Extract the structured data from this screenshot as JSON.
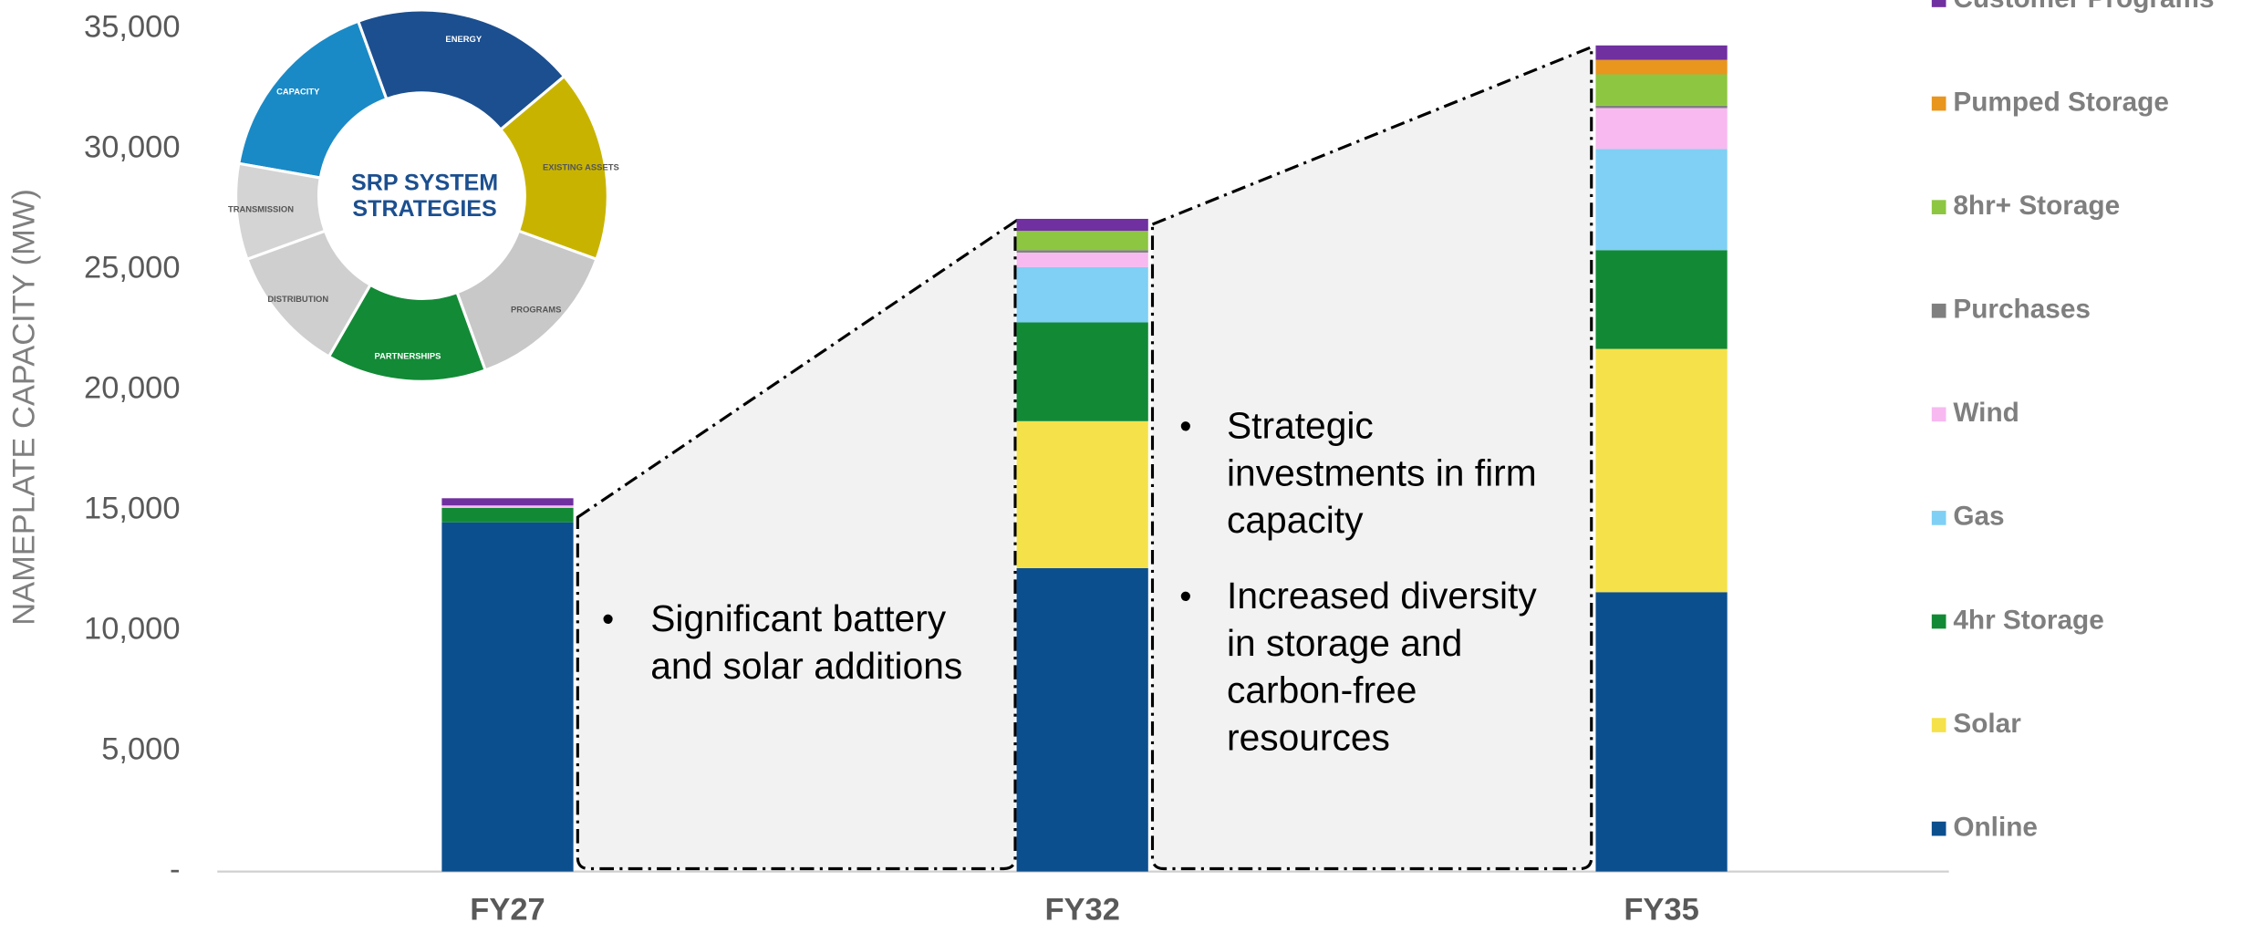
{
  "chart_data": {
    "type": "stacked-bar",
    "y_label": "NAMEPLATE CAPACITY (MW)",
    "categories": [
      "FY27",
      "FY32",
      "FY35"
    ],
    "ylim": [
      0,
      35000
    ],
    "yticks": [
      {
        "value": 0,
        "label": "-"
      },
      {
        "value": 5000,
        "label": "5,000"
      },
      {
        "value": 10000,
        "label": "10,000"
      },
      {
        "value": 15000,
        "label": "15,000"
      },
      {
        "value": 20000,
        "label": "20,000"
      },
      {
        "value": 25000,
        "label": "25,000"
      },
      {
        "value": 30000,
        "label": "30,000"
      },
      {
        "value": 35000,
        "label": "35,000"
      }
    ],
    "series": [
      {
        "name": "Online",
        "color": "#0b4f8f",
        "values": [
          14500,
          12600,
          11600
        ]
      },
      {
        "name": "Solar",
        "color": "#f5e14a",
        "values": [
          0,
          6100,
          10100
        ]
      },
      {
        "name": "4hr Storage",
        "color": "#128a35",
        "values": [
          600,
          4100,
          4100
        ]
      },
      {
        "name": "Gas",
        "color": "#7fd0f4",
        "values": [
          0,
          2300,
          4200
        ]
      },
      {
        "name": "Wind",
        "color": "#f7b9f0",
        "values": [
          100,
          600,
          1700
        ]
      },
      {
        "name": "Purchases",
        "color": "#7f7f7f",
        "values": [
          0,
          100,
          100
        ]
      },
      {
        "name": "8hr+ Storage",
        "color": "#8dc641",
        "values": [
          0,
          800,
          1300
        ]
      },
      {
        "name": "Pumped Storage",
        "color": "#e8961e",
        "values": [
          0,
          0,
          600
        ]
      },
      {
        "name": "Customer Programs",
        "color": "#7030a0",
        "values": [
          300,
          500,
          600
        ]
      }
    ],
    "annotations": [
      [
        [
          "Significant battery",
          "and solar additions"
        ]
      ],
      [
        [
          "Strategic",
          "investments in firm",
          "capacity"
        ],
        [
          "Increased diversity",
          "in storage and",
          "carbon-free",
          "resources"
        ]
      ]
    ],
    "logo": {
      "title": [
        "SRP SYSTEM",
        "STRATEGIES"
      ],
      "segments": [
        "CAPACITY",
        "ENERGY",
        "EXISTING ASSETS",
        "PROGRAMS",
        "PARTNERSHIPS",
        "DISTRIBUTION",
        "TRANSMISSION"
      ]
    }
  }
}
